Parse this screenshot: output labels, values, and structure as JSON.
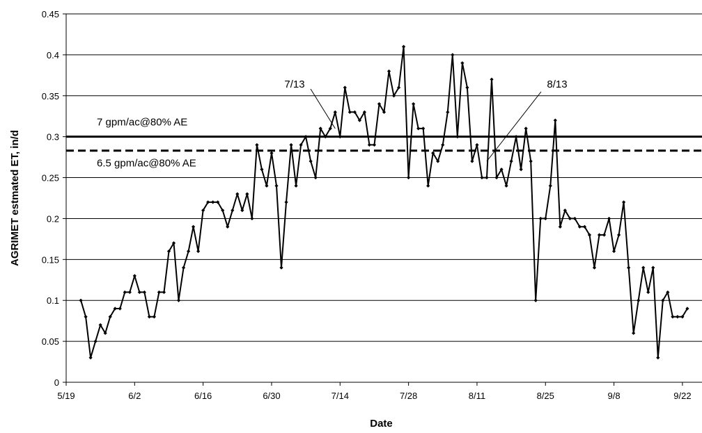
{
  "chart_data": {
    "type": "line",
    "xlabel": "Date",
    "ylabel": "AGRIMET estmated ET, in/d",
    "ylim": [
      0,
      0.45
    ],
    "y_ticks": [
      0,
      0.05,
      0.1,
      0.15,
      0.2,
      0.25,
      0.3,
      0.35,
      0.4,
      0.45
    ],
    "y_tick_labels": [
      "0",
      "0.05",
      "0.1",
      "0.15",
      "0.2",
      "0.25",
      "0.3",
      "0.35",
      "0.4",
      "0.45"
    ],
    "xlim": [
      "5/19",
      "9/26"
    ],
    "x_ticks": [
      "5/19",
      "6/2",
      "6/16",
      "6/30",
      "7/14",
      "7/28",
      "8/11",
      "8/25",
      "9/8",
      "9/22"
    ],
    "grid": "horizontal",
    "series": [
      {
        "style": "line-with-diamond-markers",
        "color": "#000000",
        "start_date": "5/22",
        "step_days": 1,
        "values": [
          0.1,
          0.08,
          0.03,
          0.05,
          0.07,
          0.06,
          0.08,
          0.09,
          0.09,
          0.11,
          0.11,
          0.13,
          0.11,
          0.11,
          0.08,
          0.08,
          0.11,
          0.11,
          0.16,
          0.17,
          0.1,
          0.14,
          0.16,
          0.19,
          0.16,
          0.21,
          0.22,
          0.22,
          0.22,
          0.21,
          0.19,
          0.21,
          0.23,
          0.21,
          0.23,
          0.2,
          0.29,
          0.26,
          0.24,
          0.28,
          0.24,
          0.14,
          0.22,
          0.29,
          0.24,
          0.29,
          0.3,
          0.27,
          0.25,
          0.31,
          0.3,
          0.31,
          0.33,
          0.3,
          0.36,
          0.33,
          0.33,
          0.32,
          0.33,
          0.29,
          0.29,
          0.34,
          0.33,
          0.38,
          0.35,
          0.36,
          0.41,
          0.25,
          0.34,
          0.31,
          0.31,
          0.24,
          0.28,
          0.27,
          0.29,
          0.33,
          0.4,
          0.3,
          0.39,
          0.36,
          0.27,
          0.29,
          0.25,
          0.25,
          0.37,
          0.25,
          0.26,
          0.24,
          0.27,
          0.3,
          0.26,
          0.31,
          0.27,
          0.1,
          0.2,
          0.2,
          0.24,
          0.32,
          0.19,
          0.21,
          0.2,
          0.2,
          0.19,
          0.19,
          0.18,
          0.14,
          0.18,
          0.18,
          0.2,
          0.16,
          0.18,
          0.22,
          0.14,
          0.06,
          0.1,
          0.14,
          0.11,
          0.14,
          0.03,
          0.1,
          0.11,
          0.08,
          0.08,
          0.08,
          0.09
        ]
      }
    ],
    "reference_lines": [
      {
        "label": "7 gpm/ac@80% AE",
        "y": 0.3,
        "style": "solid"
      },
      {
        "label": "6.5 gpm/ac@80% AE",
        "y": 0.283,
        "style": "dashed"
      }
    ],
    "annotations": [
      {
        "text": "7/13",
        "points_to_date": "7/13",
        "points_to_value": 0.31
      },
      {
        "text": "8/13",
        "points_to_date": "8/13",
        "points_to_value": 0.27
      }
    ]
  }
}
